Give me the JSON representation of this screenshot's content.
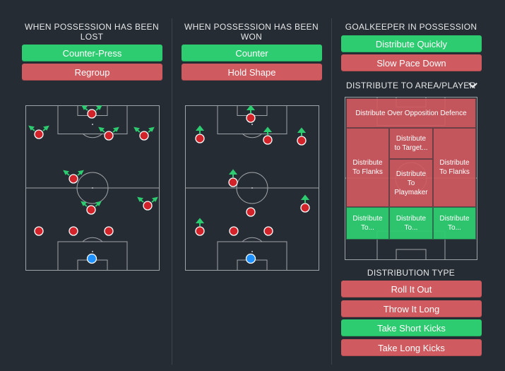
{
  "lost": {
    "heading": "WHEN POSSESSION HAS BEEN LOST",
    "buttons": [
      {
        "label": "Counter-Press",
        "state": "on"
      },
      {
        "label": "Regroup",
        "state": "off"
      }
    ]
  },
  "won": {
    "heading": "WHEN POSSESSION HAS BEEN WON",
    "buttons": [
      {
        "label": "Counter",
        "state": "on"
      },
      {
        "label": "Hold Shape",
        "state": "off"
      }
    ]
  },
  "goalkeeper": {
    "heading": "GOALKEEPER IN POSSESSION",
    "buttons": [
      {
        "label": "Distribute Quickly",
        "state": "on"
      },
      {
        "label": "Slow Pace Down",
        "state": "off"
      }
    ],
    "dropdown_label": "DISTRIBUTE TO AREA/PLAYER",
    "zones": {
      "over_defence": "Distribute Over Opposition Defence",
      "target": "Distribute to Target...",
      "flanks_left": "Distribute To Flanks",
      "flanks_right": "Distribute To Flanks",
      "playmaker": "Distribute To Playmaker",
      "to_left": "Distribute To...",
      "to_center": "Distribute To...",
      "to_right": "Distribute To..."
    },
    "distribution_type_heading": "DISTRIBUTION TYPE",
    "distribution_types": [
      {
        "label": "Roll It Out",
        "state": "off"
      },
      {
        "label": "Throw It Long",
        "state": "off"
      },
      {
        "label": "Take Short Kicks",
        "state": "on"
      },
      {
        "label": "Take Long Kicks",
        "state": "off"
      }
    ]
  },
  "colors": {
    "background": "#262c33",
    "active": "#2ecc71",
    "inactive": "#cf5a5f",
    "player": "#e0262b",
    "keeper": "#1e90ff",
    "arrow": "#2ecc71"
  }
}
